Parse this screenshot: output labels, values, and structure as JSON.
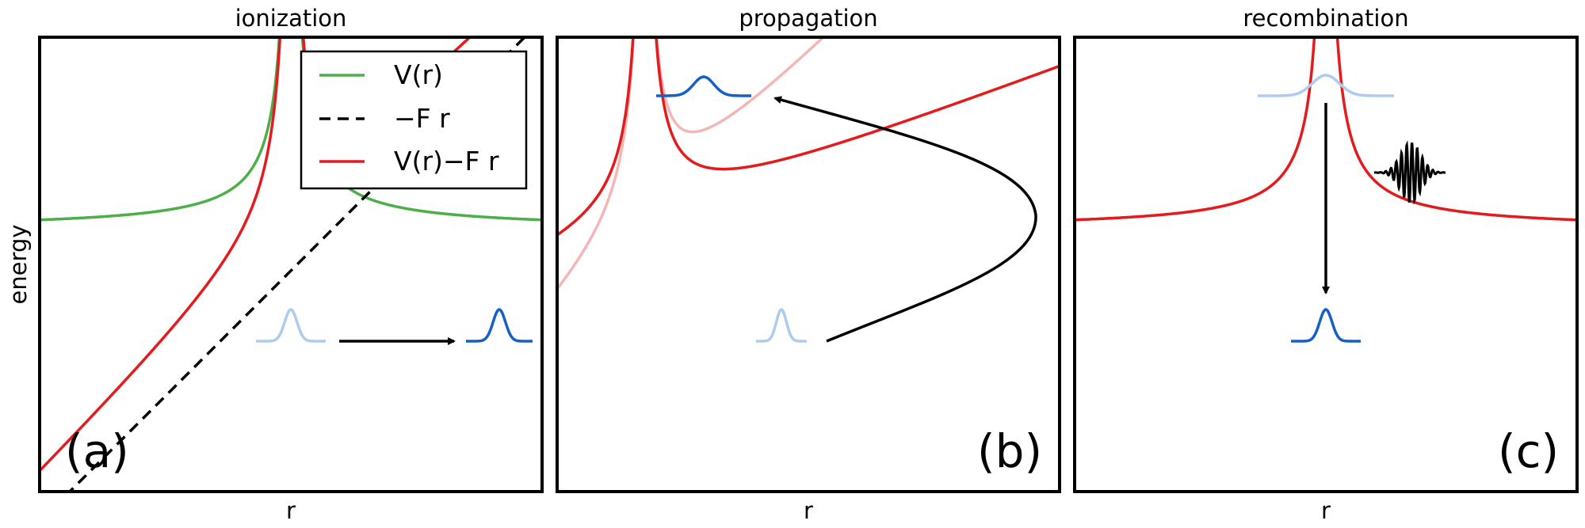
{
  "ylabel": "energy",
  "xlabel": "r",
  "colors": {
    "potential_green": "#4daf4a",
    "total_red": "#e41a1c",
    "faded_red": "#f4b6b6",
    "packet_dark": "#1560c8",
    "packet_light": "#aecbf0",
    "arrow": "#000000"
  },
  "legend": {
    "items": [
      {
        "label": "V(r)",
        "style": "solid",
        "color": "#4daf4a"
      },
      {
        "label": "−F r",
        "style": "dashed",
        "color": "#000000"
      },
      {
        "label": "V(r)−F r",
        "style": "solid",
        "color": "#e41a1c"
      }
    ]
  },
  "panels": [
    {
      "title": "ionization",
      "label": "(a)",
      "xlabel": "r"
    },
    {
      "title": "propagation",
      "label": "(b)",
      "xlabel": "r"
    },
    {
      "title": "recombination",
      "label": "(c)",
      "xlabel": "r"
    }
  ]
}
